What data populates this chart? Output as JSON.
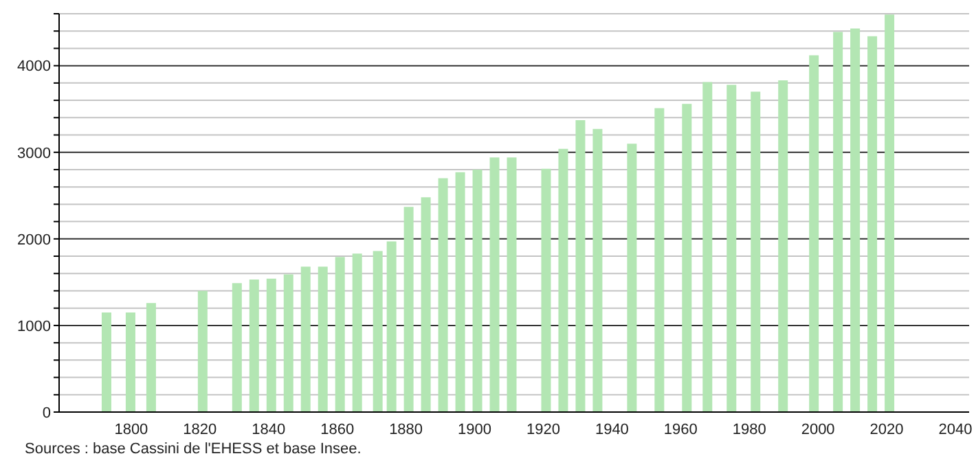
{
  "chart_data": {
    "type": "bar",
    "x": [
      1793,
      1800,
      1806,
      1821,
      1831,
      1836,
      1841,
      1846,
      1851,
      1856,
      1861,
      1866,
      1872,
      1876,
      1881,
      1886,
      1891,
      1896,
      1901,
      1906,
      1911,
      1921,
      1926,
      1931,
      1936,
      1946,
      1954,
      1962,
      1968,
      1975,
      1982,
      1990,
      1999,
      2006,
      2011,
      2016,
      2021
    ],
    "values": [
      1150,
      1150,
      1260,
      1400,
      1490,
      1530,
      1540,
      1590,
      1680,
      1680,
      1790,
      1830,
      1860,
      1970,
      2370,
      2480,
      2700,
      2770,
      2800,
      2940,
      2940,
      2810,
      3040,
      3370,
      3270,
      3100,
      3510,
      3560,
      3810,
      3780,
      3700,
      3830,
      4120,
      4390,
      4430,
      4340,
      4590
    ],
    "color": "#b3e6b3",
    "xlim": [
      1779,
      2044
    ],
    "xticks": [
      1800,
      1820,
      1840,
      1860,
      1880,
      1900,
      1920,
      1940,
      1960,
      1980,
      2000,
      2020,
      2040
    ],
    "ylim": [
      0,
      4600
    ],
    "yticks": [
      0,
      {
        "value": 200,
        "label": null
      },
      {
        "value": 400,
        "label": null
      },
      {
        "value": 600,
        "label": null
      },
      {
        "value": 800,
        "label": null
      },
      1000,
      {
        "value": 1200,
        "label": null
      },
      {
        "value": 1400,
        "label": null
      },
      {
        "value": 1600,
        "label": null
      },
      {
        "value": 1800,
        "label": null
      },
      2000,
      {
        "value": 2200,
        "label": null
      },
      {
        "value": 2400,
        "label": null
      },
      {
        "value": 2600,
        "label": null
      },
      {
        "value": 2800,
        "label": null
      },
      3000,
      {
        "value": 3200,
        "label": null
      },
      {
        "value": 3400,
        "label": null
      },
      {
        "value": 3600,
        "label": null
      },
      {
        "value": 3800,
        "label": null
      },
      4000,
      {
        "value": 4200,
        "label": null
      },
      {
        "value": 4400,
        "label": null
      },
      {
        "value": 4600,
        "label": null
      }
    ],
    "grid": "y",
    "annotations": [
      "Sources : base Cassini de l'EHESS et base Insee."
    ]
  }
}
